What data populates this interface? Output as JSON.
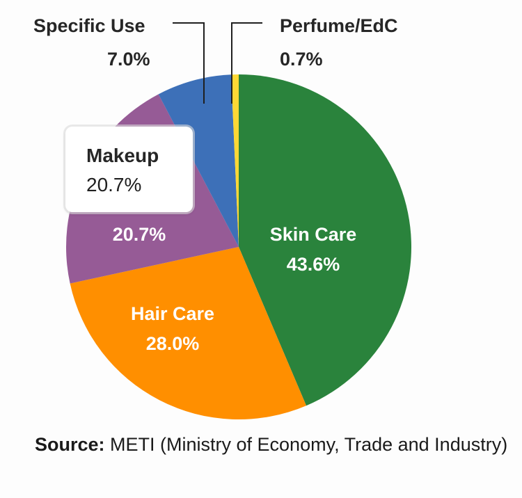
{
  "chart_data": {
    "type": "pie",
    "title": "",
    "start_angle_deg": 0,
    "direction": "clockwise",
    "categories": [
      "Skin Care",
      "Hair Care",
      "Makeup",
      "Specific Use",
      "Perfume/EdC"
    ],
    "values": [
      43.6,
      28.0,
      20.7,
      7.0,
      0.7
    ],
    "labels": [
      "43.6%",
      "28.0%",
      "20.7%",
      "7.0%",
      "0.7%"
    ],
    "colors": [
      "#2a833c",
      "#ff8f00",
      "#965b96",
      "#3d70b8",
      "#fdd835"
    ],
    "legend": "none",
    "annotations": [
      {
        "category": "Specific Use",
        "text": "Specific Use",
        "value": "7.0%",
        "type": "leader-line callout"
      },
      {
        "category": "Perfume/EdC",
        "text": "Perfume/EdC",
        "value": "0.7%",
        "type": "leader-line callout"
      }
    ]
  },
  "slices": {
    "skin_care": {
      "name": "Skin Care",
      "value": "43.6%"
    },
    "hair_care": {
      "name": "Hair Care",
      "value": "28.0%"
    },
    "makeup": {
      "name": "Makeup",
      "value": "20.7%"
    },
    "specific_use": {
      "name": "Specific Use",
      "value": "7.0%"
    },
    "perfume": {
      "name": "Perfume/EdC",
      "value": "0.7%"
    }
  },
  "tooltip": {
    "name": "Makeup",
    "value": "20.7%"
  },
  "source": {
    "label": "Source:",
    "text": " METI (Ministry of Economy, Trade and Industry)"
  }
}
